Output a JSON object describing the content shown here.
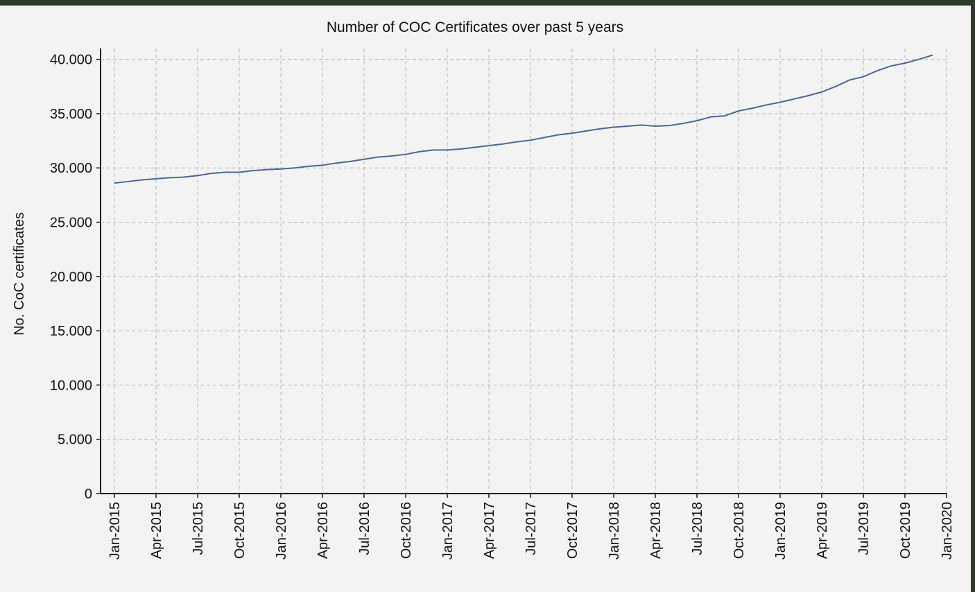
{
  "chart_data": {
    "type": "line",
    "title": "Number of COC Certificates over past 5 years",
    "y_label": "No. CoC certificates",
    "x": [
      "2015-01",
      "2015-02",
      "2015-03",
      "2015-04",
      "2015-05",
      "2015-06",
      "2015-07",
      "2015-08",
      "2015-09",
      "2015-10",
      "2015-11",
      "2015-12",
      "2016-01",
      "2016-02",
      "2016-03",
      "2016-04",
      "2016-05",
      "2016-06",
      "2016-07",
      "2016-08",
      "2016-09",
      "2016-10",
      "2016-11",
      "2016-12",
      "2017-01",
      "2017-02",
      "2017-03",
      "2017-04",
      "2017-05",
      "2017-06",
      "2017-07",
      "2017-08",
      "2017-09",
      "2017-10",
      "2017-11",
      "2017-12",
      "2018-01",
      "2018-02",
      "2018-03",
      "2018-04",
      "2018-05",
      "2018-06",
      "2018-07",
      "2018-08",
      "2018-09",
      "2018-10",
      "2018-11",
      "2018-12",
      "2019-01",
      "2019-02",
      "2019-03",
      "2019-04",
      "2019-05",
      "2019-06",
      "2019-07",
      "2019-08",
      "2019-09",
      "2019-10",
      "2019-11",
      "2019-12"
    ],
    "series": [
      {
        "color": "#4a6796",
        "values": [
          28600,
          28750,
          28900,
          29000,
          29100,
          29150,
          29300,
          29500,
          29600,
          29600,
          29750,
          29850,
          29900,
          30000,
          30150,
          30250,
          30450,
          30600,
          30800,
          31000,
          31100,
          31250,
          31500,
          31650,
          31650,
          31750,
          31900,
          32050,
          32200,
          32400,
          32550,
          32800,
          33050,
          33200,
          33400,
          33600,
          33750,
          33850,
          33950,
          33850,
          33900,
          34100,
          34350,
          34700,
          34800,
          35250,
          35500,
          35800,
          36050,
          36350,
          36650,
          37000,
          37500,
          38100,
          38400,
          38950,
          39400,
          39650,
          40000,
          40400
        ]
      }
    ],
    "xlim": [
      "2014-12",
      "2020-01"
    ],
    "xticks": [
      {
        "value": "2015-01",
        "label": "Jan-2015"
      },
      {
        "value": "2015-04",
        "label": "Apr-2015"
      },
      {
        "value": "2015-07",
        "label": "Jul-2015"
      },
      {
        "value": "2015-10",
        "label": "Oct-2015"
      },
      {
        "value": "2016-01",
        "label": "Jan-2016"
      },
      {
        "value": "2016-04",
        "label": "Apr-2016"
      },
      {
        "value": "2016-07",
        "label": "Jul-2016"
      },
      {
        "value": "2016-10",
        "label": "Oct-2016"
      },
      {
        "value": "2017-01",
        "label": "Jan-2017"
      },
      {
        "value": "2017-04",
        "label": "Apr-2017"
      },
      {
        "value": "2017-07",
        "label": "Jul-2017"
      },
      {
        "value": "2017-10",
        "label": "Oct-2017"
      },
      {
        "value": "2018-01",
        "label": "Jan-2018"
      },
      {
        "value": "2018-04",
        "label": "Apr-2018"
      },
      {
        "value": "2018-07",
        "label": "Jul-2018"
      },
      {
        "value": "2018-10",
        "label": "Oct-2018"
      },
      {
        "value": "2019-01",
        "label": "Jan-2019"
      },
      {
        "value": "2019-04",
        "label": "Apr-2019"
      },
      {
        "value": "2019-07",
        "label": "Jul-2019"
      },
      {
        "value": "2019-10",
        "label": "Oct-2019"
      },
      {
        "value": "2020-01",
        "label": "Jan-2020"
      }
    ],
    "ylim": [
      0,
      41000
    ],
    "yticks": [
      0,
      {
        "value": 5000,
        "label": "5.000"
      },
      {
        "value": 10000,
        "label": "10.000"
      },
      {
        "value": 15000,
        "label": "15.000"
      },
      {
        "value": 20000,
        "label": "20.000"
      },
      {
        "value": 25000,
        "label": "25.000"
      },
      {
        "value": 30000,
        "label": "30.000"
      },
      {
        "value": 35000,
        "label": "35.000"
      },
      {
        "value": 40000,
        "label": "40.000"
      }
    ],
    "grid": true
  }
}
